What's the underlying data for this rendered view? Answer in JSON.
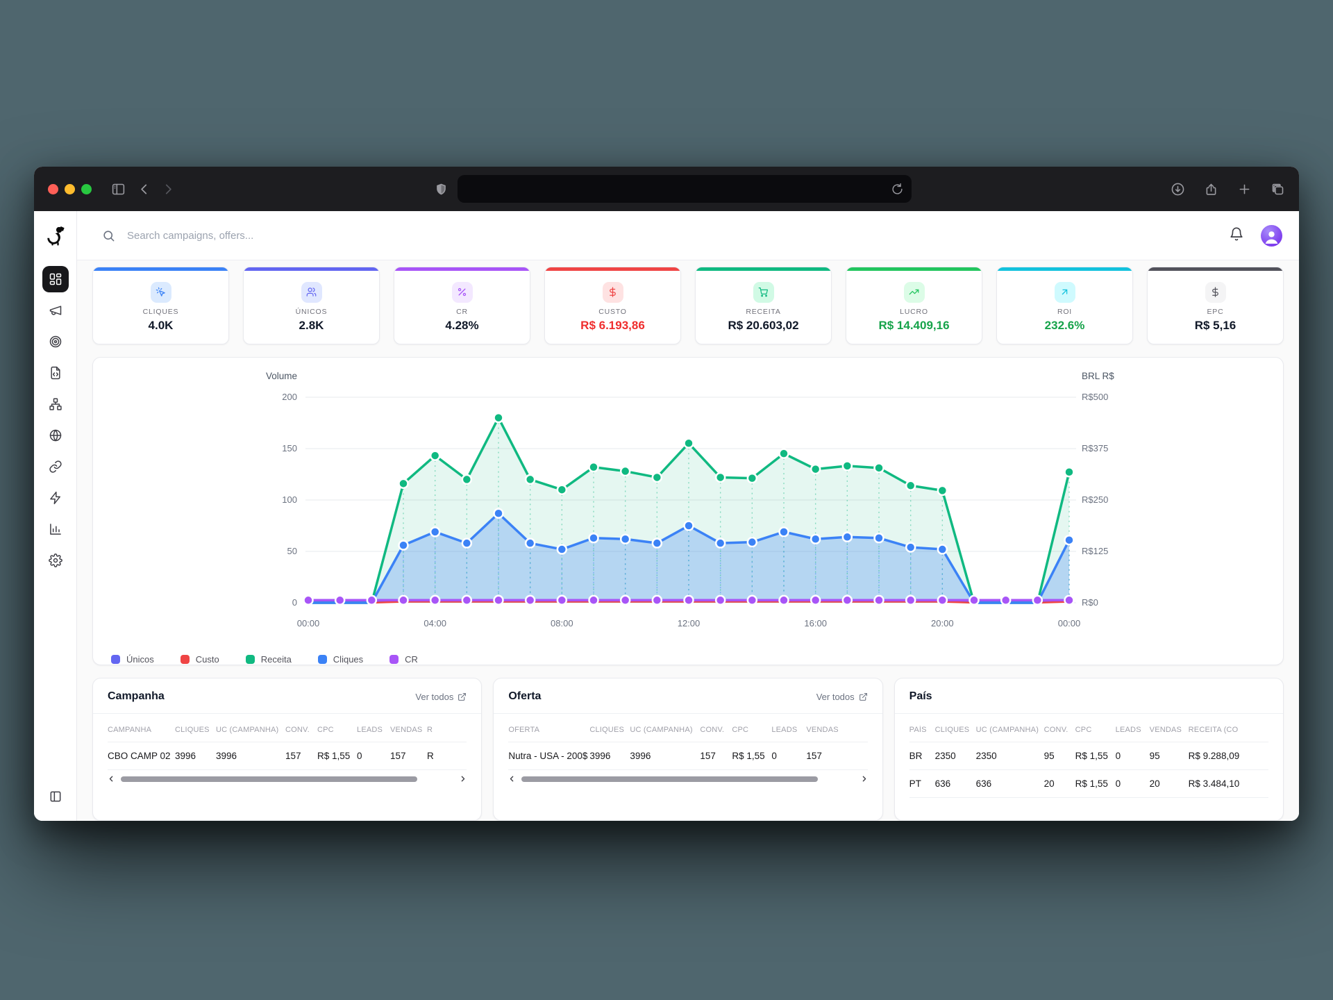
{
  "browser": {
    "traffic_lights": [
      "#ff5f57",
      "#febc2e",
      "#28c840"
    ],
    "url_value": ""
  },
  "header": {
    "search_placeholder": "Search campaigns, offers..."
  },
  "sidebar": {
    "items": [
      "dashboard",
      "campaigns",
      "offers",
      "landing-pages",
      "funnels",
      "domains",
      "links",
      "automations",
      "reports",
      "settings"
    ],
    "active_item": "dashboard"
  },
  "stats": [
    {
      "label": "CLIQUES",
      "value": "4.0K",
      "accent": "#3b82f6",
      "chip_bg": "#dbeafe",
      "icon": "cursor-click"
    },
    {
      "label": "ÚNICOS",
      "value": "2.8K",
      "accent": "#6366f1",
      "chip_bg": "#e0e7ff",
      "icon": "users"
    },
    {
      "label": "CR",
      "value": "4.28%",
      "accent": "#a855f7",
      "chip_bg": "#f3e8ff",
      "icon": "percent"
    },
    {
      "label": "CUSTO",
      "value": "R$ 6.193,86",
      "accent": "#ef4444",
      "chip_bg": "#fee2e2",
      "icon": "dollar",
      "value_color": "#ef2d2d"
    },
    {
      "label": "RECEITA",
      "value": "R$ 20.603,02",
      "accent": "#10b981",
      "chip_bg": "#d1fae5",
      "icon": "cart"
    },
    {
      "label": "LUCRO",
      "value": "R$ 14.409,16",
      "accent": "#22c55e",
      "chip_bg": "#dcfce7",
      "icon": "trending-up",
      "value_color": "#16a34a"
    },
    {
      "label": "ROI",
      "value": "232.6%",
      "accent": "#13c2dd",
      "chip_bg": "#cffafe",
      "icon": "arrow-up-right",
      "value_color": "#16a34a"
    },
    {
      "label": "EPC",
      "value": "R$ 5,16",
      "accent": "#52525b",
      "chip_bg": "#f4f4f5",
      "icon": "dollar",
      "icon_color": "#52525b"
    }
  ],
  "chart_data": {
    "type": "line",
    "x": [
      "00:00",
      "01:00",
      "02:00",
      "03:00",
      "04:00",
      "05:00",
      "06:00",
      "07:00",
      "08:00",
      "09:00",
      "10:00",
      "11:00",
      "12:00",
      "13:00",
      "14:00",
      "15:00",
      "16:00",
      "17:00",
      "18:00",
      "19:00",
      "20:00",
      "21:00",
      "22:00",
      "23:00",
      "00:00"
    ],
    "x_tick_labels": [
      "00:00",
      "04:00",
      "08:00",
      "12:00",
      "16:00",
      "20:00",
      "00:00"
    ],
    "left_axis": {
      "title": "Volume",
      "range": [
        0,
        200
      ],
      "ticks": [
        0,
        50,
        100,
        150,
        200
      ]
    },
    "right_axis": {
      "title": "BRL R$",
      "range": [
        0,
        500
      ],
      "ticks": [
        "R$0",
        "R$125",
        "R$250",
        "R$375",
        "R$500"
      ]
    },
    "grid": true,
    "legend_position": "bottom",
    "series": [
      {
        "name": "Únicos",
        "color": "#6366f1",
        "axis": "left",
        "values": [
          1.5,
          1.5,
          1.5,
          1.5,
          1.5,
          1.5,
          1.5,
          1.5,
          1.5,
          1.5,
          1.5,
          1.5,
          1.5,
          1.5,
          1.5,
          1.5,
          1.5,
          1.5,
          1.5,
          1.5,
          1.5,
          1.5,
          1.5,
          1.5,
          1.5
        ]
      },
      {
        "name": "Custo",
        "color": "#ef4444",
        "axis": "left",
        "values": [
          0,
          0,
          0,
          1,
          1,
          1,
          1,
          1,
          1,
          1,
          1,
          1,
          1,
          1,
          1,
          1,
          1,
          1,
          1,
          1,
          1,
          0,
          0,
          0,
          1
        ]
      },
      {
        "name": "Receita",
        "color": "#10b981",
        "axis": "right",
        "values": [
          0,
          0,
          0,
          290,
          358,
          300,
          450,
          300,
          275,
          330,
          320,
          305,
          388,
          305,
          303,
          363,
          325,
          333,
          328,
          285,
          273,
          0,
          0,
          0,
          318
        ]
      },
      {
        "name": "Cliques",
        "color": "#3b82f6",
        "axis": "left",
        "values": [
          0,
          0,
          0,
          56,
          69,
          58,
          87,
          58,
          52,
          63,
          62,
          58,
          75,
          58,
          59,
          69,
          62,
          64,
          63,
          54,
          52,
          0,
          0,
          0,
          61
        ]
      },
      {
        "name": "CR",
        "color": "#a855f7",
        "axis": "left",
        "values": [
          2.5,
          2.5,
          2.5,
          2.5,
          2.5,
          2.5,
          2.5,
          2.5,
          2.5,
          2.5,
          2.5,
          2.5,
          2.5,
          2.5,
          2.5,
          2.5,
          2.5,
          2.5,
          2.5,
          2.5,
          2.5,
          2.5,
          2.5,
          2.5,
          2.5
        ]
      }
    ]
  },
  "tables": {
    "campanha": {
      "title": "Campanha",
      "link": "Ver todos",
      "headers": [
        "CAMPANHA",
        "CLIQUES",
        "UC (CAMPANHA)",
        "CONV.",
        "CPC",
        "LEADS",
        "VENDAS",
        "R"
      ],
      "rows": [
        [
          "CBO CAMP 02",
          "3996",
          "3996",
          "157",
          "R$ 1,55",
          "0",
          "157",
          "R"
        ]
      ]
    },
    "oferta": {
      "title": "Oferta",
      "link": "Ver todos",
      "headers": [
        "OFERTA",
        "CLIQUES",
        "UC (CAMPANHA)",
        "CONV.",
        "CPC",
        "LEADS",
        "VENDAS"
      ],
      "rows": [
        [
          "Nutra - USA - 200$",
          "3996",
          "3996",
          "157",
          "R$ 1,55",
          "0",
          "157"
        ]
      ]
    },
    "pais": {
      "title": "País",
      "headers": [
        "PAÍS",
        "CLIQUES",
        "UC (CAMPANHA)",
        "CONV.",
        "CPC",
        "LEADS",
        "VENDAS",
        "RECEITA (CO"
      ],
      "rows": [
        [
          "BR",
          "2350",
          "2350",
          "95",
          "R$ 1,55",
          "0",
          "95",
          "R$ 9.288,09"
        ],
        [
          "PT",
          "636",
          "636",
          "20",
          "R$ 1,55",
          "0",
          "20",
          "R$ 3.484,10"
        ]
      ]
    }
  }
}
